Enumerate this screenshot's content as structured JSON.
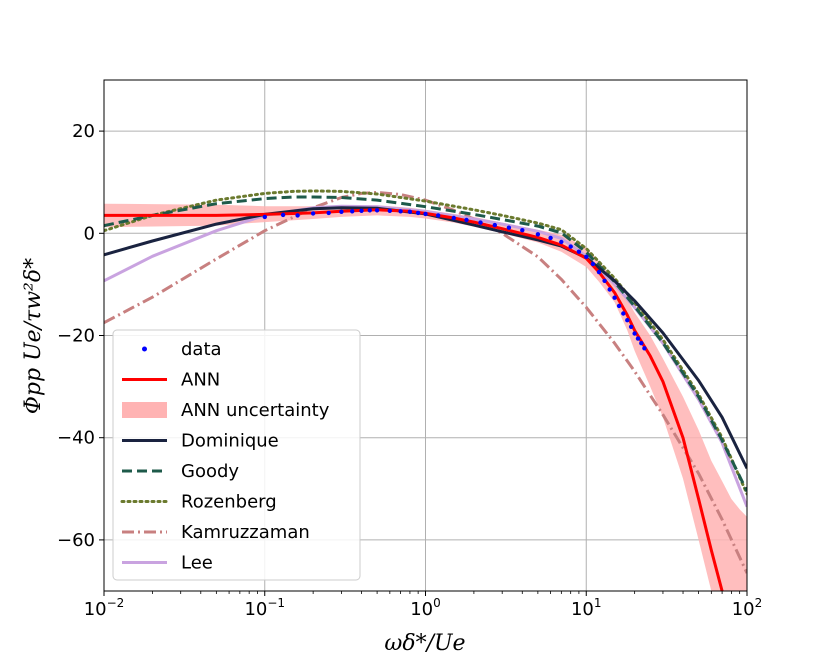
{
  "chart_data": {
    "type": "line",
    "xscale": "log",
    "xlim": [
      0.01,
      100
    ],
    "ylim": [
      -70,
      30
    ],
    "grid": true,
    "xlabel": "ωδ*/Ue",
    "ylabel": "Φpp Ue/τw²δ*",
    "x_ticks": [
      {
        "value": 0.01,
        "base": "10",
        "exp": "−2"
      },
      {
        "value": 0.1,
        "base": "10",
        "exp": "−1"
      },
      {
        "value": 1,
        "base": "10",
        "exp": "0"
      },
      {
        "value": 10,
        "base": "10",
        "exp": "1"
      },
      {
        "value": 100,
        "base": "10",
        "exp": "2"
      }
    ],
    "y_ticks": [
      {
        "value": 20,
        "label": "20"
      },
      {
        "value": 0,
        "label": "0"
      },
      {
        "value": -20,
        "label": "−20"
      },
      {
        "value": -40,
        "label": "−40"
      },
      {
        "value": -60,
        "label": "−60"
      }
    ],
    "legend_position": "lower-left",
    "data_points": {
      "name": "data",
      "color": "#0000ff",
      "x": [
        0.1,
        0.13,
        0.16,
        0.2,
        0.25,
        0.3,
        0.35,
        0.4,
        0.45,
        0.5,
        0.6,
        0.7,
        0.8,
        0.9,
        1.0,
        1.2,
        1.5,
        1.8,
        2.2,
        2.7,
        3.3,
        4,
        5,
        6,
        7,
        8,
        9,
        10,
        11,
        12,
        13,
        14,
        15,
        16,
        17,
        18,
        19,
        20,
        21,
        22,
        23
      ],
      "y": [
        3.2,
        3.6,
        3.5,
        3.9,
        4.0,
        4.2,
        4.3,
        4.4,
        4.5,
        4.5,
        4.4,
        4.3,
        4.2,
        4.0,
        3.8,
        3.5,
        3.0,
        2.6,
        2.1,
        1.6,
        1.1,
        0.6,
        -0.2,
        -0.9,
        -1.7,
        -2.6,
        -3.6,
        -4.6,
        -6.0,
        -7.6,
        -9.3,
        -11.0,
        -12.6,
        -14.2,
        -15.7,
        -17.0,
        -18.3,
        -19.6,
        -20.6,
        -21.5,
        -22.5
      ]
    },
    "series": [
      {
        "name": "ANN",
        "color": "#ff0000",
        "style": "solid",
        "x": [
          0.01,
          0.05,
          0.1,
          0.2,
          0.3,
          0.5,
          0.8,
          1,
          1.5,
          2,
          3,
          5,
          7,
          10,
          12,
          15,
          18,
          20,
          25,
          30,
          40,
          50,
          60,
          70
        ],
        "y": [
          3.5,
          3.5,
          3.7,
          4.0,
          4.3,
          4.6,
          4.3,
          3.9,
          3.0,
          2.2,
          0.9,
          -0.8,
          -2.3,
          -4.9,
          -7.6,
          -11.6,
          -16.0,
          -19.0,
          -24.0,
          -29.0,
          -40.0,
          -52.0,
          -62.0,
          -70.0
        ]
      },
      {
        "name": "Dominique",
        "color": "#1a2340",
        "style": "solid",
        "x": [
          0.01,
          0.02,
          0.05,
          0.1,
          0.2,
          0.3,
          0.5,
          1,
          2,
          3,
          5,
          7,
          10,
          15,
          20,
          30,
          50,
          70,
          100
        ],
        "y": [
          -4.2,
          -1.5,
          1.8,
          3.7,
          4.8,
          5.0,
          4.9,
          3.8,
          1.6,
          0.3,
          -1.3,
          -2.5,
          -4.8,
          -9.3,
          -13.2,
          -19.5,
          -28.8,
          -36.0,
          -46.0
        ]
      },
      {
        "name": "Goody",
        "color": "#1e5a4a",
        "style": "dashed",
        "x": [
          0.01,
          0.02,
          0.05,
          0.1,
          0.15,
          0.2,
          0.3,
          0.5,
          1,
          2,
          3,
          5,
          7,
          10,
          15,
          20,
          30,
          50,
          70,
          100
        ],
        "y": [
          1.5,
          3.5,
          5.8,
          6.8,
          7.1,
          7.1,
          7.0,
          6.5,
          5.2,
          3.7,
          2.7,
          1.4,
          0.1,
          -3.7,
          -9.5,
          -14.3,
          -21.4,
          -32.0,
          -40.5,
          -50.5
        ]
      },
      {
        "name": "Rozenberg",
        "color": "#6b7a2e",
        "style": "dotted",
        "x": [
          0.01,
          0.02,
          0.05,
          0.1,
          0.15,
          0.2,
          0.3,
          0.5,
          1,
          2,
          3,
          5,
          7,
          10,
          15,
          20,
          30,
          50,
          70,
          100
        ],
        "y": [
          0.5,
          3.5,
          6.5,
          7.8,
          8.2,
          8.3,
          8.2,
          7.7,
          6.3,
          4.6,
          3.5,
          2.0,
          0.7,
          -3.0,
          -8.8,
          -13.6,
          -20.8,
          -31.5,
          -40.0,
          -51.0
        ]
      },
      {
        "name": "Kamruzzaman",
        "color": "#c88080",
        "style": "dashdot",
        "x": [
          0.01,
          0.02,
          0.05,
          0.1,
          0.2,
          0.3,
          0.4,
          0.5,
          0.7,
          1,
          1.5,
          2,
          3,
          5,
          7,
          10,
          15,
          20,
          30,
          50,
          70,
          100
        ],
        "y": [
          -17.5,
          -12.5,
          -5.0,
          0.5,
          5.0,
          7.0,
          7.8,
          8.0,
          7.6,
          6.5,
          4.5,
          2.8,
          0.0,
          -4.6,
          -9.0,
          -14.5,
          -21.5,
          -27.0,
          -35.5,
          -47.0,
          -56.0,
          -66.5
        ]
      },
      {
        "name": "Lee",
        "color": "#c9a3e0",
        "style": "solid",
        "x": [
          0.01,
          0.02,
          0.05,
          0.1,
          0.2,
          0.3,
          0.5,
          1,
          2,
          3,
          5,
          7,
          10,
          15,
          20,
          30,
          50,
          70,
          100
        ],
        "y": [
          -9.3,
          -4.5,
          0.5,
          3.5,
          5.0,
          5.3,
          5.2,
          4.3,
          2.8,
          1.8,
          0.4,
          -1.0,
          -4.5,
          -10.0,
          -14.5,
          -21.5,
          -32.5,
          -41.0,
          -53.5
        ]
      }
    ],
    "uncertainty_band": {
      "name": "ANN uncertainty",
      "color": "#ffb3b3",
      "x": [
        0.01,
        0.05,
        0.1,
        0.2,
        0.3,
        0.5,
        0.8,
        1,
        1.5,
        2,
        3,
        5,
        7,
        10,
        12,
        15,
        18,
        20,
        25,
        30,
        40,
        50,
        60,
        70,
        80,
        90,
        100
      ],
      "upper": [
        5.8,
        5.6,
        5.3,
        5.3,
        5.4,
        5.5,
        5.0,
        4.6,
        3.8,
        3.2,
        2.1,
        0.7,
        -0.3,
        -2.8,
        -5.5,
        -9.5,
        -13.0,
        -15.5,
        -20.0,
        -24.5,
        -32.0,
        -38.5,
        -44.5,
        -48.5,
        -52.0,
        -54.0,
        -55.5
      ],
      "lower": [
        1.2,
        1.5,
        2.2,
        2.8,
        3.2,
        3.5,
        3.2,
        2.9,
        2.1,
        1.3,
        0.0,
        -1.8,
        -3.6,
        -6.6,
        -9.5,
        -13.5,
        -19.0,
        -23.0,
        -30.0,
        -36.0,
        -48.0,
        -60.0,
        -70.0,
        -70.0,
        -70.0,
        -70.0,
        -70.0
      ]
    },
    "legend": [
      {
        "label": "data",
        "kind": "dot",
        "color": "#0000ff"
      },
      {
        "label": "ANN",
        "kind": "solid",
        "color": "#ff0000"
      },
      {
        "label": "ANN uncertainty",
        "kind": "patch",
        "color": "#ffb3b3"
      },
      {
        "label": "Dominique",
        "kind": "solid",
        "color": "#1a2340"
      },
      {
        "label": "Goody",
        "kind": "dashed",
        "color": "#1e5a4a"
      },
      {
        "label": "Rozenberg",
        "kind": "dotted",
        "color": "#6b7a2e"
      },
      {
        "label": "Kamruzzaman",
        "kind": "dashdot",
        "color": "#c88080"
      },
      {
        "label": "Lee",
        "kind": "solid",
        "color": "#c9a3e0"
      }
    ]
  }
}
